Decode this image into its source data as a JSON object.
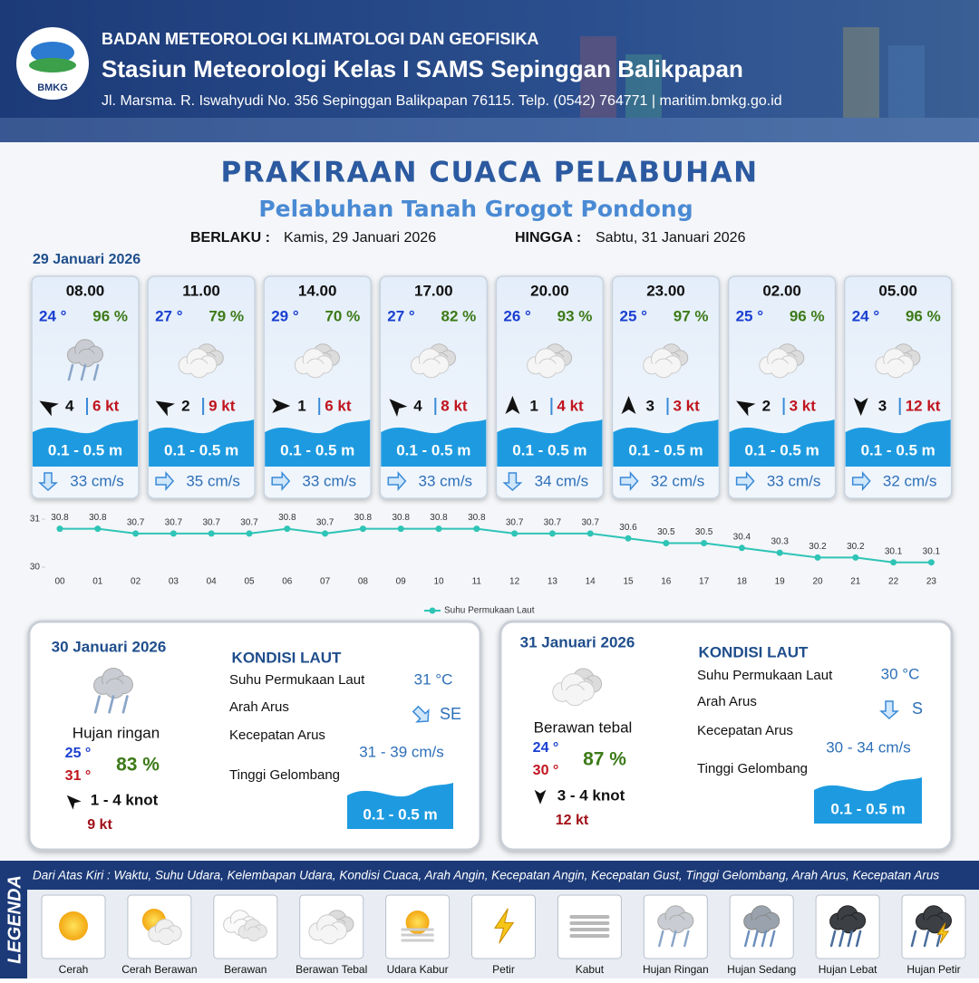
{
  "header": {
    "logo": "BMKG",
    "agency": "BADAN METEOROLOGI KLIMATOLOGI DAN GEOFISIKA",
    "station": "Stasiun Meteorologi Kelas I SAMS Sepinggan Balikpapan",
    "address": "Jl. Marsma. R. Iswahyudi No. 356 Sepinggan Balikpapan 76115. Telp. (0542) 764771 | maritim.bmkg.go.id"
  },
  "title": "PRAKIRAAN CUACA PELABUHAN",
  "subtitle": "Pelabuhan Tanah Grogot Pondong",
  "validity": {
    "from_label": "BERLAKU :",
    "from": "Kamis, 29 Januari 2026",
    "to_label": "HINGGA :",
    "to": "Sabtu, 31 Januari 2026"
  },
  "day1_date": "29 Januari 2026",
  "forecasts": [
    {
      "time": "08.00",
      "temp": "24 °",
      "humidity": "96 %",
      "wind_force": "4",
      "wind": "6 kt",
      "wave": "0.1 - 0.5 m",
      "current": "33 cm/s"
    },
    {
      "time": "11.00",
      "temp": "27 °",
      "humidity": "79 %",
      "wind_force": "2",
      "wind": "9 kt",
      "wave": "0.1 - 0.5 m",
      "current": "35 cm/s"
    },
    {
      "time": "14.00",
      "temp": "29 °",
      "humidity": "70 %",
      "wind_force": "1",
      "wind": "6 kt",
      "wave": "0.1 - 0.5 m",
      "current": "33 cm/s"
    },
    {
      "time": "17.00",
      "temp": "27 °",
      "humidity": "82 %",
      "wind_force": "4",
      "wind": "8 kt",
      "wave": "0.1 - 0.5 m",
      "current": "33 cm/s"
    },
    {
      "time": "20.00",
      "temp": "26 °",
      "humidity": "93 %",
      "wind_force": "1",
      "wind": "4 kt",
      "wave": "0.1 - 0.5 m",
      "current": "34 cm/s"
    },
    {
      "time": "23.00",
      "temp": "25 °",
      "humidity": "97 %",
      "wind_force": "3",
      "wind": "3 kt",
      "wave": "0.1 - 0.5 m",
      "current": "32 cm/s"
    },
    {
      "time": "02.00",
      "temp": "25 °",
      "humidity": "96 %",
      "wind_force": "2",
      "wind": "3 kt",
      "wave": "0.1 - 0.5 m",
      "current": "33 cm/s"
    },
    {
      "time": "05.00",
      "temp": "24 °",
      "humidity": "96 %",
      "wind_force": "3",
      "wind": "12 kt",
      "wave": "0.1 - 0.5 m",
      "current": "32 cm/s"
    }
  ],
  "chart_data": {
    "type": "line",
    "categories": [
      "00",
      "01",
      "02",
      "03",
      "04",
      "05",
      "06",
      "07",
      "08",
      "09",
      "10",
      "11",
      "12",
      "13",
      "14",
      "15",
      "16",
      "17",
      "18",
      "19",
      "20",
      "21",
      "22",
      "23"
    ],
    "series": [
      {
        "name": "Suhu Permukaan Laut",
        "color": "#2ec4b6",
        "values": [
          30.8,
          30.8,
          30.7,
          30.7,
          30.7,
          30.7,
          30.8,
          30.7,
          30.8,
          30.8,
          30.8,
          30.8,
          30.7,
          30.7,
          30.7,
          30.6,
          30.5,
          30.5,
          30.4,
          30.3,
          30.2,
          30.2,
          30.1,
          30.1
        ]
      }
    ],
    "ylim": [
      30,
      31
    ],
    "yticks": [
      30,
      31
    ]
  },
  "daily": [
    {
      "date": "30 Januari 2026",
      "condition": "Hujan ringan",
      "temp_min": "25 °",
      "temp_max": "31 °",
      "humidity": "83 %",
      "wind": "1 - 4 knot",
      "gust": "9 kt",
      "sea_title": "KONDISI LAUT",
      "sst_label": "Suhu Permukaan Laut",
      "sst": "31 °C",
      "current_dir_label": "Arah Arus",
      "current_dir": "SE",
      "current_speed_label": "Kecepatan Arus",
      "current_speed": "31  - 39 cm/s",
      "wave_label": "Tinggi Gelombang",
      "wave": "0.1 - 0.5 m"
    },
    {
      "date": "31 Januari 2026",
      "condition": "Berawan tebal",
      "temp_min": "24 °",
      "temp_max": "30 °",
      "humidity": "87 %",
      "wind": "3 - 4 knot",
      "gust": "12 kt",
      "sea_title": "KONDISI LAUT",
      "sst_label": "Suhu Permukaan Laut",
      "sst": "30 °C",
      "current_dir_label": "Arah Arus",
      "current_dir": "S",
      "current_speed_label": "Kecepatan Arus",
      "current_speed": "30  - 34 cm/s",
      "wave_label": "Tinggi Gelombang",
      "wave": "0.1 - 0.5 m"
    }
  ],
  "legend": {
    "title": "LEGENDA",
    "description": "Dari Atas Kiri : Waktu, Suhu Udara, Kelembapan Udara, Kondisi Cuaca, Arah Angin, Kecepatan Angin, Kecepatan Gust, Tinggi Gelombang, Arah Arus, Kecepatan Arus",
    "items": [
      "Cerah",
      "Cerah Berawan",
      "Berawan",
      "Berawan Tebal",
      "Udara Kabur",
      "Petir",
      "Kabut",
      "Hujan Ringan",
      "Hujan Sedang",
      "Hujan Lebat",
      "Hujan Petir"
    ]
  }
}
